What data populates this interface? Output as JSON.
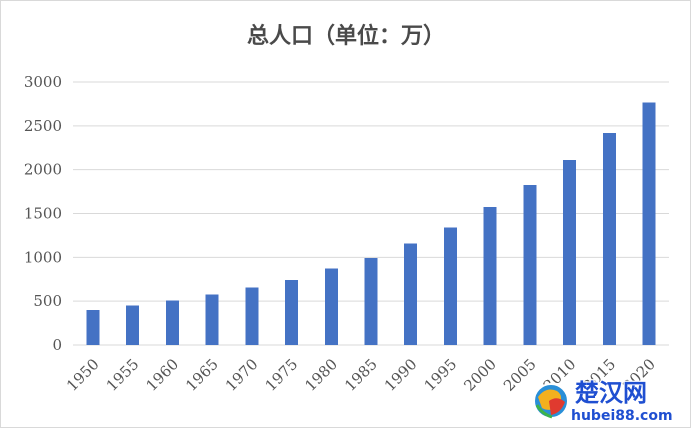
{
  "colors": {
    "bar": "#4472c4",
    "grid": "#d9d9d9",
    "text": "#555555",
    "title": "#4a4a4a",
    "watermark": "#1f4fd1"
  },
  "watermark": {
    "logo_icon": "globe-logo-icon",
    "name": "楚汉网",
    "url": "hubei88.com"
  },
  "chart_data": {
    "type": "bar",
    "title": "总人口（单位：万）",
    "xlabel": "",
    "ylabel": "",
    "ylim": [
      0,
      3000
    ],
    "yticks": [
      "0",
      "500",
      "1000",
      "1500",
      "2000",
      "2500",
      "3000"
    ],
    "grid": true,
    "legend": "none",
    "categories": [
      "1950",
      "1955",
      "1960",
      "1965",
      "1970",
      "1975",
      "1980",
      "1985",
      "1990",
      "1995",
      "2000",
      "2005",
      "2010",
      "2015",
      "2020"
    ],
    "values": [
      400,
      450,
      510,
      575,
      655,
      740,
      870,
      995,
      1160,
      1340,
      1575,
      1825,
      2110,
      2420,
      2765
    ]
  }
}
